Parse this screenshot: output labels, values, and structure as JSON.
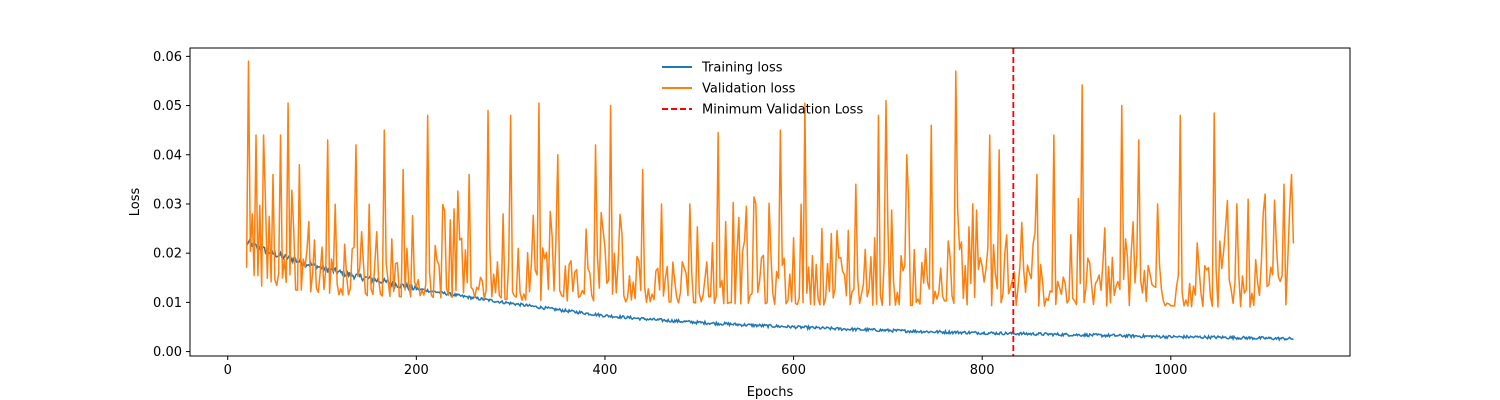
{
  "chart_data": {
    "type": "line",
    "title": "",
    "xlabel": "Epochs",
    "ylabel": "Loss",
    "xlim": [
      -40,
      1190
    ],
    "ylim": [
      -0.0009,
      0.0617
    ],
    "xticks": [
      0,
      200,
      400,
      600,
      800,
      1000
    ],
    "xtick_labels": [
      "0",
      "200",
      "400",
      "600",
      "800",
      "1000"
    ],
    "yticks": [
      0.0,
      0.01,
      0.02,
      0.03,
      0.04,
      0.05,
      0.06
    ],
    "ytick_labels": [
      "0.00",
      "0.01",
      "0.02",
      "0.03",
      "0.04",
      "0.05",
      "0.06"
    ],
    "grid": false,
    "legend_position": "top-center",
    "series": [
      {
        "name": "Training loss",
        "color": "#1f77b4",
        "style": "solid",
        "x_start": 20,
        "x_end": 1130,
        "x": [
          20,
          50,
          80,
          100,
          120,
          150,
          175,
          200,
          250,
          300,
          350,
          400,
          450,
          500,
          550,
          600,
          650,
          700,
          750,
          800,
          850,
          900,
          950,
          1000,
          1050,
          1100,
          1130
        ],
        "y": [
          0.0222,
          0.0198,
          0.0181,
          0.017,
          0.016,
          0.0148,
          0.0138,
          0.0128,
          0.0112,
          0.0098,
          0.0085,
          0.0073,
          0.0065,
          0.0059,
          0.0054,
          0.005,
          0.0046,
          0.0043,
          0.004,
          0.0038,
          0.0036,
          0.0034,
          0.0032,
          0.003,
          0.0029,
          0.0027,
          0.0026
        ],
        "noise_amplitude": 0.0006
      },
      {
        "name": "Validation loss",
        "color": "#ff7f0e",
        "style": "solid",
        "x_start": 20,
        "x_end": 1130,
        "baseline": [
          [
            20,
            0.0165
          ],
          [
            120,
            0.0145
          ],
          [
            300,
            0.0135
          ],
          [
            600,
            0.0125
          ],
          [
            1130,
            0.012
          ]
        ],
        "peaks": [
          [
            22,
            0.059
          ],
          [
            26,
            0.028
          ],
          [
            30,
            0.044
          ],
          [
            38,
            0.044
          ],
          [
            48,
            0.036
          ],
          [
            56,
            0.044
          ],
          [
            64,
            0.0505
          ],
          [
            75,
            0.038
          ],
          [
            105,
            0.043
          ],
          [
            135,
            0.042
          ],
          [
            165,
            0.045
          ],
          [
            185,
            0.037
          ],
          [
            212,
            0.048
          ],
          [
            240,
            0.029
          ],
          [
            255,
            0.036
          ],
          [
            275,
            0.049
          ],
          [
            300,
            0.048
          ],
          [
            330,
            0.0505
          ],
          [
            350,
            0.04
          ],
          [
            390,
            0.042
          ],
          [
            405,
            0.05
          ],
          [
            440,
            0.037
          ],
          [
            460,
            0.03
          ],
          [
            490,
            0.03
          ],
          [
            520,
            0.0445
          ],
          [
            560,
            0.03
          ],
          [
            585,
            0.045
          ],
          [
            612,
            0.0505
          ],
          [
            640,
            0.024
          ],
          [
            665,
            0.034
          ],
          [
            690,
            0.048
          ],
          [
            698,
            0.051
          ],
          [
            720,
            0.04
          ],
          [
            745,
            0.046
          ],
          [
            772,
            0.057
          ],
          [
            790,
            0.03
          ],
          [
            808,
            0.044
          ],
          [
            818,
            0.041
          ],
          [
            858,
            0.036
          ],
          [
            875,
            0.044
          ],
          [
            905,
            0.0542
          ],
          [
            948,
            0.05
          ],
          [
            965,
            0.043
          ],
          [
            985,
            0.03
          ],
          [
            1010,
            0.048
          ],
          [
            1045,
            0.0485
          ],
          [
            1070,
            0.03
          ],
          [
            1100,
            0.032
          ],
          [
            1120,
            0.034
          ],
          [
            1128,
            0.036
          ]
        ],
        "noise_amplitude": 0.022
      },
      {
        "name": "Minimum Validation Loss",
        "color": "#ff0000",
        "style": "dashed",
        "x": 833
      }
    ]
  }
}
